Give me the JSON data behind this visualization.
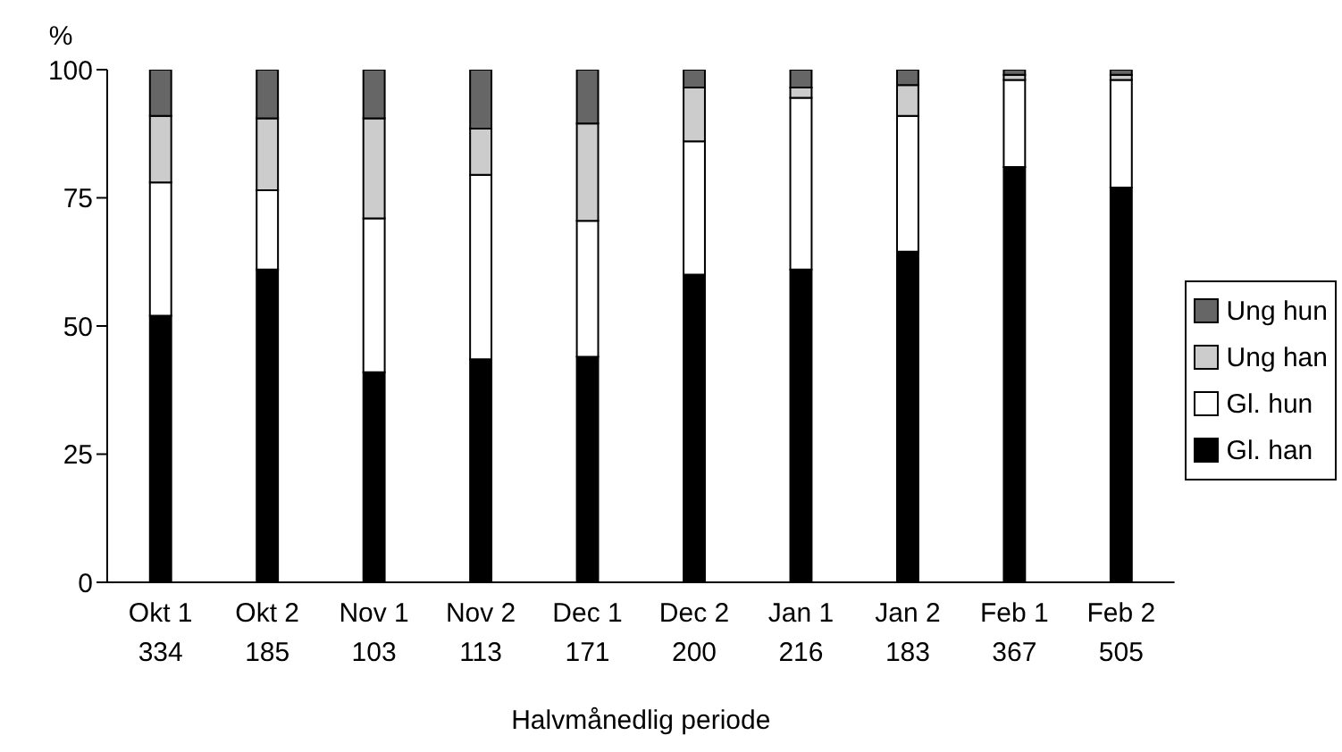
{
  "chart_data": {
    "type": "bar",
    "stacked": true,
    "xlabel": "Halvmånedlig periode",
    "ylabel": "%",
    "categories": [
      "Okt 1\n334",
      "Okt 2\n185",
      "Nov 1\n103",
      "Nov 2\n113",
      "Dec 1\n171",
      "Dec 2\n200",
      "Jan 1\n216",
      "Jan 2\n183",
      "Feb 1\n367",
      "Feb 2\n505"
    ],
    "series": [
      {
        "name": "Gl. han",
        "color": "#000000",
        "values": [
          52,
          61,
          41,
          43.5,
          44,
          60,
          61,
          64.5,
          81,
          77
        ]
      },
      {
        "name": "Gl. hun",
        "color": "#ffffff",
        "values": [
          26,
          15.5,
          30,
          36,
          26.5,
          26,
          33.5,
          26.5,
          17,
          21
        ]
      },
      {
        "name": "Ung han",
        "color": "#cccccc",
        "values": [
          13,
          14,
          19.5,
          9,
          19,
          10.5,
          2,
          6,
          1,
          1
        ]
      },
      {
        "name": "Ung hun",
        "color": "#666666",
        "values": [
          9,
          9.5,
          9.5,
          11.5,
          10.5,
          3.5,
          3.5,
          3,
          1,
          1
        ]
      }
    ],
    "ylim": [
      0,
      100
    ],
    "yticks": [
      0,
      25,
      50,
      75,
      100
    ],
    "grid": false,
    "legend": "right"
  }
}
